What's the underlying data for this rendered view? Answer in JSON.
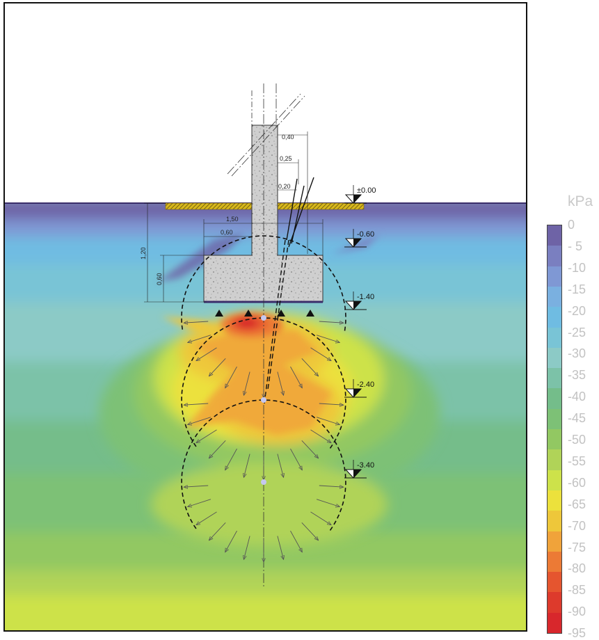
{
  "legend": {
    "unit": "kPa",
    "values": [
      "0",
      "- 5",
      "-10",
      "-15",
      "-20",
      "-25",
      "-30",
      "-35",
      "-40",
      "-45",
      "-50",
      "-55",
      "-60",
      "-65",
      "-70",
      "-75",
      "-80",
      "-85",
      "-90",
      "-95"
    ],
    "colors": [
      "#6e63a6",
      "#7a7fc0",
      "#7f98d4",
      "#7ab0e0",
      "#6fbce2",
      "#79c4d6",
      "#8ccac6",
      "#7cc2a8",
      "#74bd8a",
      "#7dc176",
      "#92c862",
      "#b0d358",
      "#cde24a",
      "#ece13c",
      "#eec73a",
      "#f0a33a",
      "#ec7a35",
      "#e5552f",
      "#dd3a2c",
      "#d8272c"
    ]
  },
  "levels": [
    "±0.00",
    "-0.60",
    "-1.40",
    "-2.40",
    "-3.40"
  ],
  "dimensions": {
    "top_0_40": "0,40",
    "top_0_25": "0,25",
    "top_0_20": "0,20",
    "width_1_50": "1,50",
    "width_0_60": "0,60",
    "height_1_20": "1,20",
    "height_0_60": "0,60"
  }
}
